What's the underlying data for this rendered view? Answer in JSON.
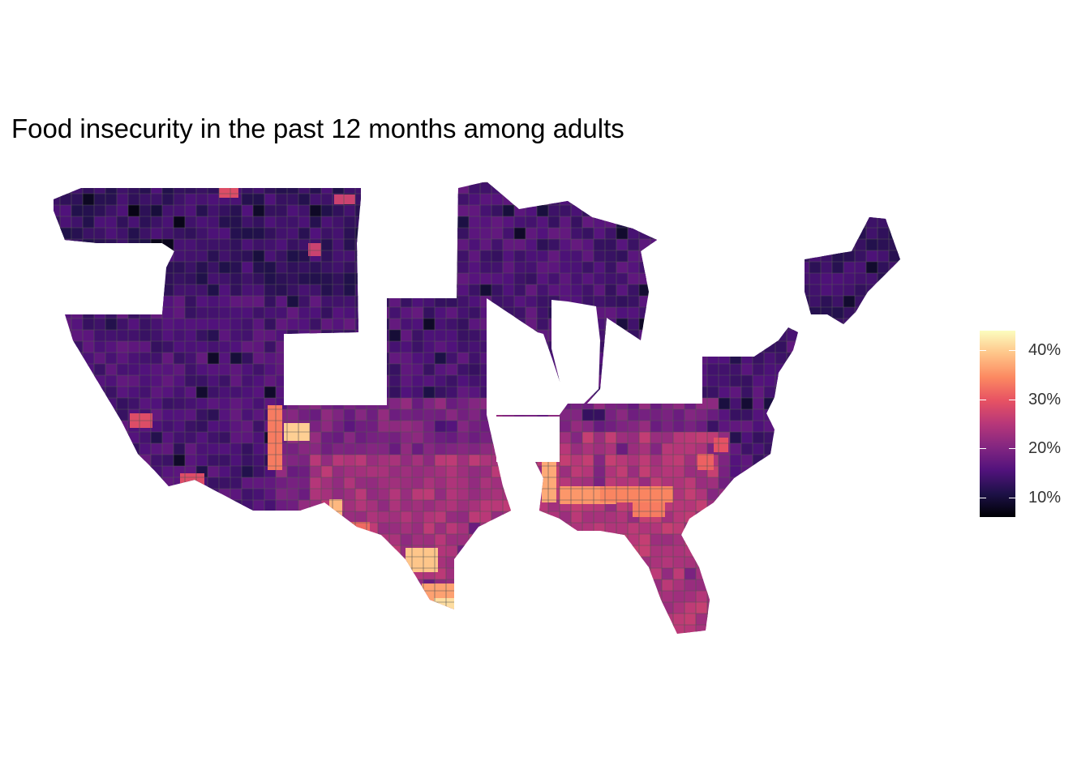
{
  "title": "Food insecurity in the past 12 months among adults",
  "legend": {
    "labels": [
      "40%",
      "30%",
      "20%",
      "10%"
    ],
    "values": [
      40,
      30,
      20,
      10
    ],
    "min": 6,
    "max": 44,
    "colors": [
      "#000004",
      "#1d1147",
      "#51127c",
      "#832681",
      "#b73779",
      "#e75263",
      "#fc8961",
      "#fec488",
      "#fcfdbf"
    ]
  },
  "map": {
    "palette": "magma",
    "missing_states": [
      "Colorado",
      "Illinois",
      "Arkansas"
    ]
  }
}
